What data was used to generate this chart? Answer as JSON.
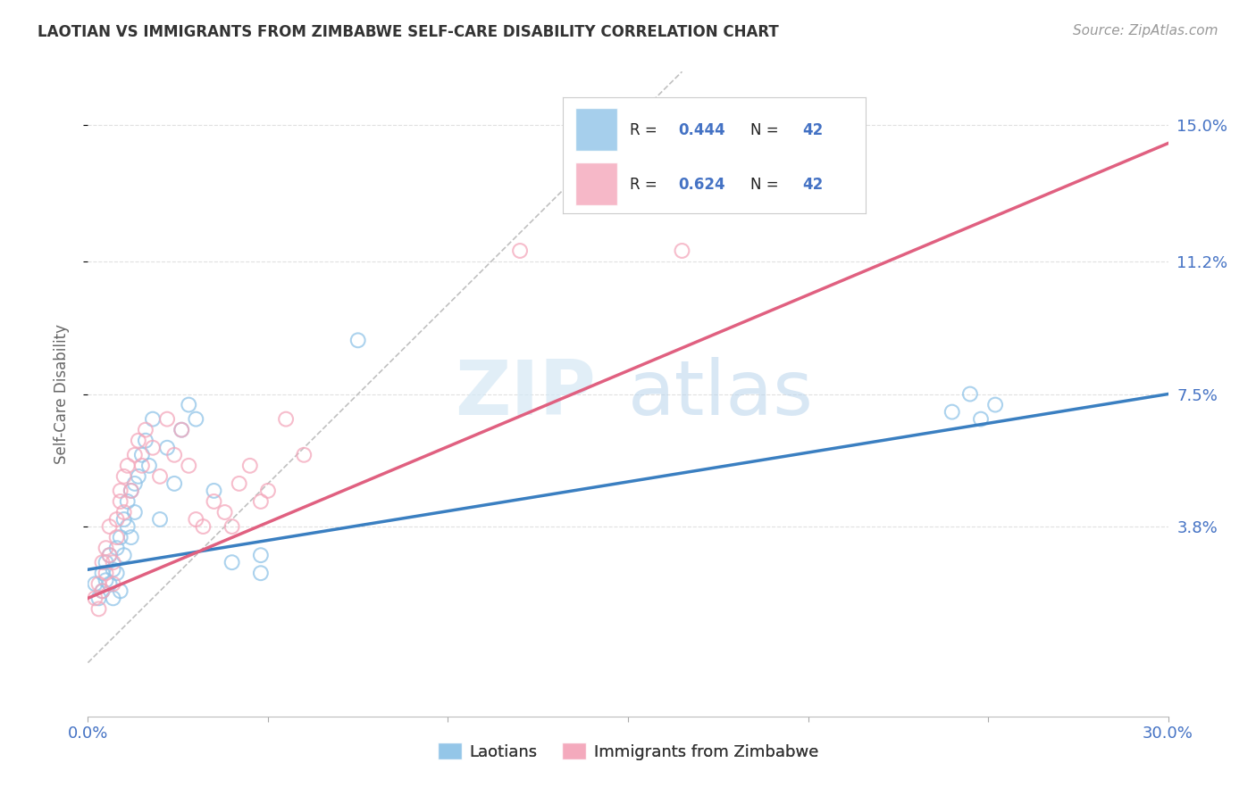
{
  "title": "LAOTIAN VS IMMIGRANTS FROM ZIMBABWE SELF-CARE DISABILITY CORRELATION CHART",
  "source": "Source: ZipAtlas.com",
  "ylabel": "Self-Care Disability",
  "ytick_labels": [
    "15.0%",
    "11.2%",
    "7.5%",
    "3.8%"
  ],
  "ytick_values": [
    0.15,
    0.112,
    0.075,
    0.038
  ],
  "xlim": [
    0.0,
    0.3
  ],
  "ylim": [
    -0.015,
    0.165
  ],
  "legend_blue_r": "R = 0.444",
  "legend_blue_n": "N = 42",
  "legend_pink_r": "R = 0.624",
  "legend_pink_n": "N = 42",
  "blue_color": "#90c4e8",
  "pink_color": "#f4a7bb",
  "blue_line_color": "#3a7fc1",
  "pink_line_color": "#e06080",
  "diagonal_color": "#c0c0c0",
  "blue_scatter_x": [
    0.002,
    0.003,
    0.004,
    0.004,
    0.005,
    0.005,
    0.006,
    0.006,
    0.007,
    0.007,
    0.008,
    0.008,
    0.009,
    0.009,
    0.01,
    0.01,
    0.011,
    0.011,
    0.012,
    0.012,
    0.013,
    0.013,
    0.014,
    0.015,
    0.016,
    0.017,
    0.018,
    0.02,
    0.022,
    0.024,
    0.026,
    0.028,
    0.03,
    0.035,
    0.04,
    0.048,
    0.048,
    0.075,
    0.24,
    0.245,
    0.248,
    0.252
  ],
  "blue_scatter_y": [
    0.022,
    0.018,
    0.02,
    0.025,
    0.023,
    0.028,
    0.022,
    0.03,
    0.018,
    0.026,
    0.025,
    0.032,
    0.035,
    0.02,
    0.03,
    0.04,
    0.038,
    0.045,
    0.035,
    0.048,
    0.042,
    0.05,
    0.052,
    0.058,
    0.062,
    0.055,
    0.068,
    0.04,
    0.06,
    0.05,
    0.065,
    0.072,
    0.068,
    0.048,
    0.028,
    0.025,
    0.03,
    0.09,
    0.07,
    0.075,
    0.068,
    0.072
  ],
  "pink_scatter_x": [
    0.002,
    0.003,
    0.003,
    0.004,
    0.004,
    0.005,
    0.005,
    0.006,
    0.006,
    0.007,
    0.007,
    0.008,
    0.008,
    0.009,
    0.009,
    0.01,
    0.01,
    0.011,
    0.012,
    0.013,
    0.014,
    0.015,
    0.016,
    0.018,
    0.02,
    0.022,
    0.024,
    0.026,
    0.028,
    0.03,
    0.032,
    0.035,
    0.038,
    0.04,
    0.042,
    0.045,
    0.048,
    0.05,
    0.055,
    0.06,
    0.12,
    0.165
  ],
  "pink_scatter_y": [
    0.018,
    0.015,
    0.022,
    0.02,
    0.028,
    0.025,
    0.032,
    0.03,
    0.038,
    0.022,
    0.028,
    0.04,
    0.035,
    0.045,
    0.048,
    0.042,
    0.052,
    0.055,
    0.048,
    0.058,
    0.062,
    0.055,
    0.065,
    0.06,
    0.052,
    0.068,
    0.058,
    0.065,
    0.055,
    0.04,
    0.038,
    0.045,
    0.042,
    0.038,
    0.05,
    0.055,
    0.045,
    0.048,
    0.068,
    0.058,
    0.115,
    0.115
  ],
  "blue_line_x": [
    0.0,
    0.3
  ],
  "blue_line_y": [
    0.026,
    0.075
  ],
  "pink_line_x": [
    0.0,
    0.3
  ],
  "pink_line_y": [
    0.018,
    0.145
  ],
  "diag_line_x": [
    0.0,
    0.165
  ],
  "diag_line_y": [
    0.0,
    0.165
  ],
  "watermark_zip": "ZIP",
  "watermark_atlas": "atlas",
  "background_color": "#ffffff",
  "grid_color": "#e0e0e0",
  "label_color": "#4472c4",
  "text_dark": "#333333",
  "legend_r_color": "#222222",
  "legend_val_color": "#4472c4"
}
